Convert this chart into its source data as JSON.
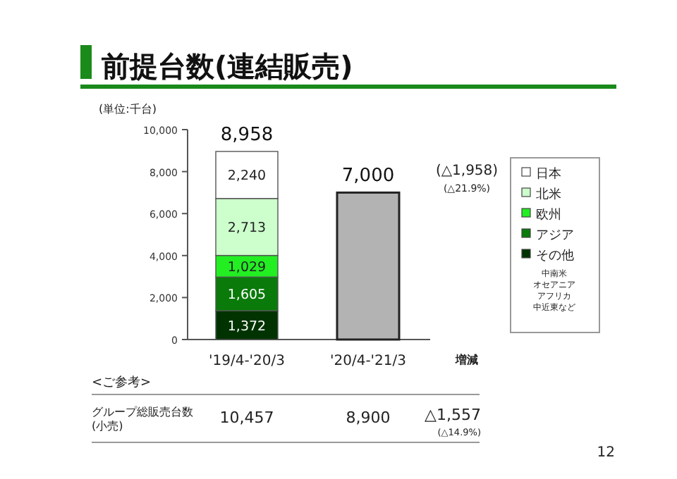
{
  "chart_data": {
    "type": "bar",
    "stacked": true,
    "title": "前提台数(連結販売)",
    "categories": [
      "'19/4-'20/3",
      "'20/4-'21/3"
    ],
    "series": [
      {
        "name": "その他",
        "color": "#003300",
        "values": [
          1372,
          null
        ],
        "value_labels": [
          "1,372",
          null
        ]
      },
      {
        "name": "アジア",
        "color": "#0a7a0a",
        "values": [
          1605,
          null
        ],
        "value_labels": [
          "1,605",
          null
        ]
      },
      {
        "name": "欧州",
        "color": "#22ee22",
        "values": [
          1029,
          null
        ],
        "value_labels": [
          "1,029",
          null
        ]
      },
      {
        "name": "北米",
        "color": "#ccffcc",
        "values": [
          2713,
          null
        ],
        "value_labels": [
          "2,713",
          null
        ]
      },
      {
        "name": "日本",
        "color": "#ffffff",
        "values": [
          2240,
          null
        ],
        "value_labels": [
          "2,240",
          null
        ]
      },
      {
        "color": "#b3b3b3",
        "values": [
          null,
          7000
        ]
      }
    ],
    "totals": [
      "8,958",
      "7,000"
    ],
    "ylim": [
      0,
      10000
    ],
    "yticks": [
      {
        "value": 0,
        "label": "0"
      },
      {
        "value": 2000,
        "label": "2,000"
      },
      {
        "value": 4000,
        "label": "4,000"
      },
      {
        "value": 6000,
        "label": "6,000"
      },
      {
        "value": 8000,
        "label": "8,000"
      },
      {
        "value": 10000,
        "label": "10,000"
      }
    ],
    "legend": "right",
    "annotations": [
      "(単位:千台)",
      "(△1,958)",
      "(△21.9%)",
      "増減",
      "中南米",
      "オセアニア",
      "アフリカ",
      "中近東など",
      "<ご参考>",
      "グループ総販売台数 (小売)",
      "10,457",
      "8,900",
      "△1,557",
      "(△14.9%)",
      "12"
    ]
  }
}
